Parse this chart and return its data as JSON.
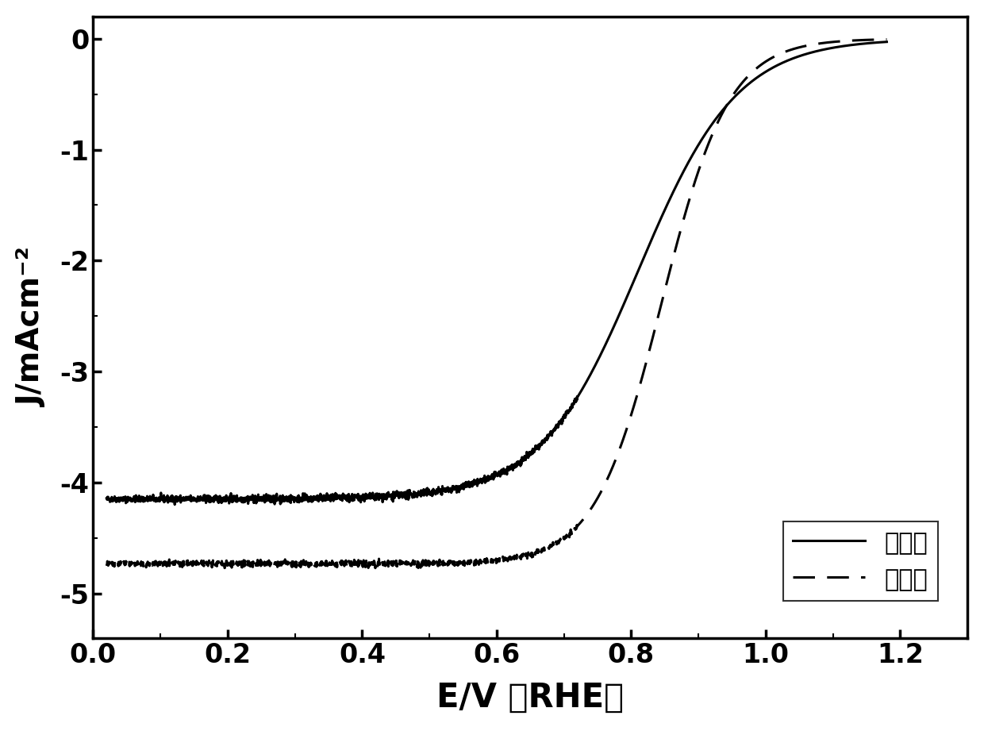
{
  "title": "",
  "xlabel": "E/V （RHE）",
  "ylabel": "J/mAcm⁻²",
  "xlim": [
    0.0,
    1.3
  ],
  "ylim": [
    -5.4,
    0.2
  ],
  "xticks": [
    0.0,
    0.2,
    0.4,
    0.6,
    0.8,
    1.0,
    1.2
  ],
  "yticks": [
    0,
    -1,
    -2,
    -3,
    -4,
    -5
  ],
  "background_color": "#ffffff",
  "line_color": "#000000",
  "legend_labels": [
    "对比例",
    "实施例"
  ],
  "solid_linewidth": 2.2,
  "dashed_linewidth": 2.2
}
